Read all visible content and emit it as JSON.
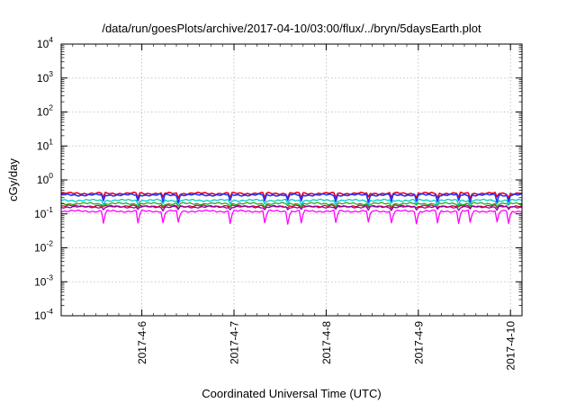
{
  "chart_data": {
    "type": "line",
    "title": "/data/run/goesPlots/archive/2017-04-10/03:00/flux/../bryn/5daysEarth.plot",
    "xlabel": "Coordinated Universal Time (UTC)",
    "ylabel": "cGy/day",
    "y_scale": "log",
    "ylim": [
      0.0001,
      10000
    ],
    "y_ticks": [
      {
        "base": "10",
        "exp": "-4"
      },
      {
        "base": "10",
        "exp": "-3"
      },
      {
        "base": "10",
        "exp": "-2"
      },
      {
        "base": "10",
        "exp": "-1"
      },
      {
        "base": "10",
        "exp": "0"
      },
      {
        "base": "10",
        "exp": "1"
      },
      {
        "base": "10",
        "exp": "2"
      },
      {
        "base": "10",
        "exp": "3"
      },
      {
        "base": "10",
        "exp": "4"
      }
    ],
    "xlim": [
      "2017-04-05T03:00",
      "2017-04-10T03:00"
    ],
    "x_ticks": [
      {
        "label": "2017-4-6",
        "value": "2017-04-06T00:00"
      },
      {
        "label": "2017-4-7",
        "value": "2017-04-07T00:00"
      },
      {
        "label": "2017-4-8",
        "value": "2017-04-08T00:00"
      },
      {
        "label": "2017-4-9",
        "value": "2017-04-09T00:00"
      },
      {
        "label": "2017-4-10",
        "value": "2017-04-10T00:00"
      }
    ],
    "grid": true,
    "legend": "none",
    "series": [
      {
        "color": "#e8001f",
        "level": 0.4,
        "dip": 0.75
      },
      {
        "color": "#2233ff",
        "level": 0.36,
        "dip": 0.65
      },
      {
        "color": "#00c8c8",
        "level": 0.25,
        "dip": 0.78
      },
      {
        "color": "#22aa22",
        "level": 0.2,
        "dip": 0.85
      },
      {
        "color": "#8800aa",
        "level": 0.16,
        "dip": 0.82
      },
      {
        "color": "#ff00ff",
        "level": 0.12,
        "dip": 0.45
      },
      {
        "color": "#e8001f",
        "level": 0.17,
        "dip": 0.88
      }
    ]
  }
}
